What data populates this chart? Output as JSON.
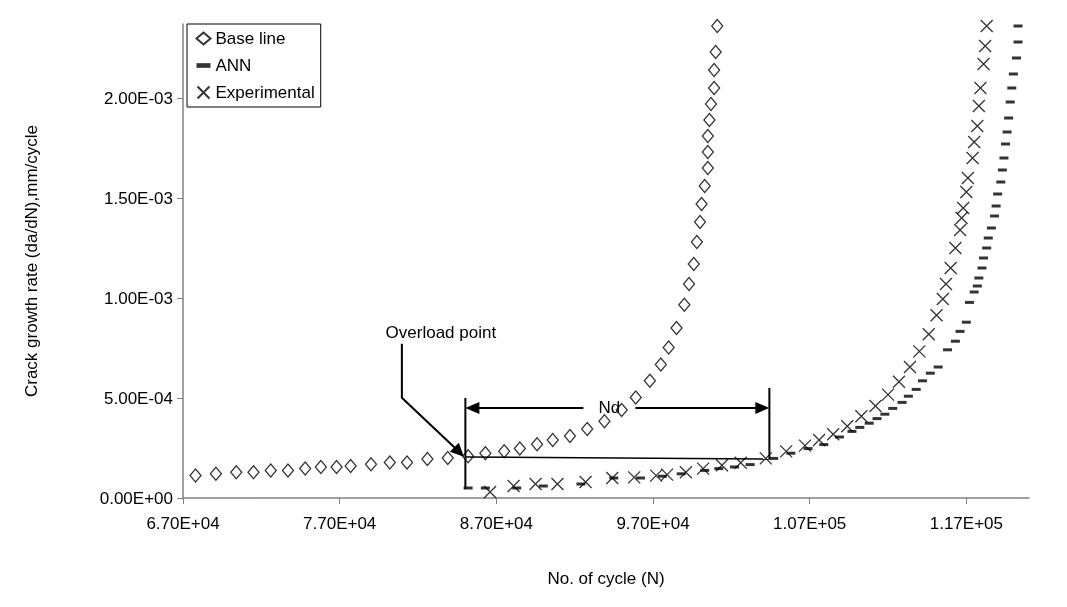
{
  "chart_data": {
    "type": "scatter",
    "xlabel": "No. of cycle (N)",
    "ylabel": "Crack growth rate (da/dN),mm/cycle",
    "xlim": [
      67000,
      121000
    ],
    "xticks": [
      {
        "value": 67000,
        "label": "6.70E+04"
      },
      {
        "value": 77000,
        "label": "7.70E+04"
      },
      {
        "value": 87000,
        "label": "8.70E+04"
      },
      {
        "value": 97000,
        "label": "9.70E+04"
      },
      {
        "value": 107000,
        "label": "1.07E+05"
      },
      {
        "value": 117000,
        "label": "1.17E+05"
      }
    ],
    "ylim": [
      0,
      0.00237
    ],
    "yticks": [
      {
        "value": 0,
        "label": "0.00E+00"
      },
      {
        "value": 0.0005,
        "label": "5.00E-04"
      },
      {
        "value": 0.001,
        "label": "1.00E-03"
      },
      {
        "value": 0.0015,
        "label": "1.50E-03"
      },
      {
        "value": 0.002,
        "label": "2.00E-03"
      }
    ],
    "grid": false,
    "legend": "top left",
    "series": [
      {
        "name": "Base line",
        "color": "#000000",
        "marker": "diamond",
        "x": [
          67800,
          69100,
          70400,
          71500,
          72600,
          73700,
          74800,
          75800,
          76800,
          77700,
          79000,
          80200,
          81300,
          82600,
          83900,
          85200,
          86300,
          87500,
          88500,
          89600,
          90600,
          91700,
          92800,
          93900,
          95000,
          95900,
          96800,
          97500,
          98000,
          98500,
          99000,
          99300,
          99600,
          99800,
          100000,
          100100,
          100300,
          100500,
          100500,
          100500,
          100600,
          100700,
          100900,
          100900,
          101000,
          101100
        ],
        "values": [
          0.000112,
          0.000121,
          0.000129,
          0.000129,
          0.000138,
          0.000138,
          0.000147,
          0.000155,
          0.000155,
          0.00016,
          0.000169,
          0.000178,
          0.000178,
          0.000195,
          0.0002,
          0.000209,
          0.000224,
          0.000234,
          0.000247,
          0.000269,
          0.00029,
          0.00031,
          0.000345,
          0.000384,
          0.00044,
          0.000503,
          0.000586,
          0.000667,
          0.000753,
          0.00085,
          0.000966,
          0.00107,
          0.00117,
          0.00128,
          0.00138,
          0.00147,
          0.00156,
          0.00165,
          0.00173,
          0.00181,
          0.00189,
          0.00197,
          0.00205,
          0.00214,
          0.00223,
          0.00236
        ]
      },
      {
        "name": "ANN",
        "color": "#000000",
        "marker": "square",
        "x": [
          85200,
          86300,
          88300,
          90000,
          92400,
          94500,
          96200,
          97600,
          98800,
          100300,
          101200,
          102200,
          103200,
          104700,
          105800,
          106900,
          107900,
          108900,
          109700,
          110200,
          110800,
          111300,
          111800,
          112300,
          112900,
          113300,
          113800,
          114200,
          114700,
          115200,
          115800,
          116300,
          116600,
          117000,
          117200,
          117500,
          117700,
          117800,
          118000,
          118100,
          118300,
          118400,
          118600,
          118800,
          118900,
          119000,
          119200,
          119300,
          119400,
          119500,
          119600,
          119700,
          119800,
          119900,
          120000,
          120200,
          120300,
          120300
        ],
        "values": [
          5e-05,
          5e-05,
          5e-05,
          6e-05,
          7e-05,
          0.0001,
          0.0001,
          0.000109,
          0.000121,
          0.000138,
          0.000147,
          0.000155,
          0.000167,
          0.000198,
          0.000224,
          0.000247,
          0.000267,
          0.000305,
          0.000333,
          0.000353,
          0.000374,
          0.000397,
          0.000419,
          0.000448,
          0.000478,
          0.000509,
          0.000543,
          0.000586,
          0.000624,
          0.000655,
          0.000741,
          0.000784,
          0.000833,
          0.000879,
          0.000978,
          0.00103,
          0.00106,
          0.0011,
          0.00115,
          0.0012,
          0.00125,
          0.0013,
          0.00135,
          0.00141,
          0.00146,
          0.00152,
          0.00158,
          0.00164,
          0.0017,
          0.00177,
          0.00183,
          0.0019,
          0.00198,
          0.00205,
          0.00212,
          0.0022,
          0.00228,
          0.00236
        ]
      },
      {
        "name": "Experimental",
        "color": "#000000",
        "marker": "cross",
        "x": [
          86600,
          88100,
          89500,
          90900,
          92700,
          94400,
          95800,
          97200,
          97900,
          99100,
          100200,
          101400,
          102600,
          104200,
          105500,
          106700,
          107600,
          108500,
          109400,
          110300,
          111200,
          112000,
          112700,
          113400,
          114000,
          114600,
          115100,
          115500,
          115700,
          116000,
          116300,
          116600,
          116700,
          116800,
          117000,
          117100,
          117400,
          117500,
          117700,
          117800,
          117900,
          118100,
          118200,
          118300
        ],
        "values": [
          3e-05,
          6e-05,
          7e-05,
          7e-05,
          8e-05,
          0.0001,
          0.000103,
          0.000112,
          0.000117,
          0.000129,
          0.000147,
          0.000164,
          0.000176,
          0.000198,
          0.000233,
          0.000262,
          0.00029,
          0.000319,
          0.000359,
          0.000409,
          0.00046,
          0.000517,
          0.000581,
          0.000655,
          0.000733,
          0.000819,
          0.000914,
          0.000995,
          0.00107,
          0.00115,
          0.00125,
          0.00134,
          0.0014,
          0.00145,
          0.00153,
          0.0016,
          0.0017,
          0.00178,
          0.00186,
          0.00196,
          0.00205,
          0.00217,
          0.00226,
          0.00236
        ]
      }
    ],
    "annotations": [
      "Overload point",
      "Nd"
    ]
  }
}
